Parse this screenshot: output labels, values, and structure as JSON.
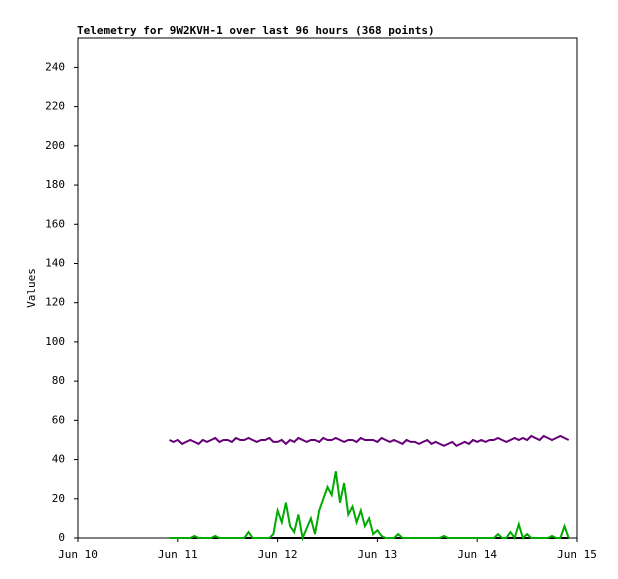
{
  "chart_data": {
    "type": "line",
    "title": "Telemetry for 9W2KVH-1 over last 96 hours (368 points)",
    "y_label": "Values",
    "x": [
      22,
      23,
      24,
      25,
      26,
      27,
      28,
      29,
      30,
      31,
      32,
      33,
      34,
      35,
      36,
      37,
      38,
      39,
      40,
      41,
      42,
      43,
      44,
      45,
      46,
      47,
      48,
      49,
      50,
      51,
      52,
      53,
      54,
      55,
      56,
      57,
      58,
      59,
      60,
      61,
      62,
      63,
      64,
      65,
      66,
      67,
      68,
      69,
      70,
      71,
      72,
      73,
      74,
      75,
      76,
      77,
      78,
      79,
      80,
      81,
      82,
      83,
      84,
      85,
      86,
      87,
      88,
      89,
      90,
      91,
      92,
      93,
      94,
      95,
      96,
      97,
      98,
      99,
      100,
      101,
      102,
      103,
      104,
      105,
      106,
      107,
      108,
      109,
      110,
      111,
      112,
      113,
      114,
      115,
      116,
      117,
      118
    ],
    "series": [
      {
        "color": "#000000",
        "values": [
          0,
          0,
          0,
          0,
          0,
          0,
          0,
          0,
          0,
          0,
          0,
          0,
          0,
          0,
          0,
          0,
          0,
          0,
          0,
          0,
          0,
          0,
          0,
          0,
          0,
          0,
          0,
          0,
          0,
          0,
          0,
          0,
          0,
          0,
          0,
          0,
          0,
          0,
          0,
          0,
          0,
          0,
          0,
          0,
          0,
          0,
          0,
          0,
          0,
          0,
          0,
          0,
          0,
          0,
          0,
          0,
          0,
          0,
          0,
          0,
          0,
          0,
          0,
          0,
          0,
          0,
          0,
          0,
          0,
          0,
          0,
          0,
          0,
          0,
          0,
          0,
          0,
          0,
          0,
          0,
          0,
          0,
          0,
          0,
          0,
          0,
          0,
          0,
          0,
          0,
          0,
          0,
          0,
          0,
          0,
          0,
          0
        ]
      },
      {
        "color": "#00aa00",
        "values": [
          0,
          0,
          0,
          0,
          0,
          0,
          1,
          0,
          0,
          0,
          0,
          1,
          0,
          0,
          0,
          0,
          0,
          0,
          0,
          3,
          0,
          0,
          0,
          0,
          0,
          2,
          14,
          8,
          18,
          6,
          3,
          12,
          0,
          5,
          10,
          2,
          14,
          20,
          26,
          22,
          34,
          18,
          28,
          12,
          16,
          8,
          14,
          6,
          10,
          2,
          4,
          1,
          0,
          0,
          0,
          2,
          0,
          0,
          0,
          0,
          0,
          0,
          0,
          0,
          0,
          0,
          1,
          0,
          0,
          0,
          0,
          0,
          0,
          0,
          0,
          0,
          0,
          0,
          0,
          2,
          0,
          0,
          3,
          0,
          7,
          0,
          2,
          0,
          0,
          0,
          0,
          0,
          1,
          0,
          0,
          6,
          0
        ]
      },
      {
        "color": "#660077",
        "values": [
          50,
          49,
          50,
          48,
          49,
          50,
          49,
          48,
          50,
          49,
          50,
          51,
          49,
          50,
          50,
          49,
          51,
          50,
          50,
          51,
          50,
          49,
          50,
          50,
          51,
          49,
          49,
          50,
          48,
          50,
          49,
          51,
          50,
          49,
          50,
          50,
          49,
          51,
          50,
          50,
          51,
          50,
          49,
          50,
          50,
          49,
          51,
          50,
          50,
          50,
          49,
          51,
          50,
          49,
          50,
          49,
          48,
          50,
          49,
          49,
          48,
          49,
          50,
          48,
          49,
          48,
          47,
          48,
          49,
          47,
          48,
          49,
          48,
          50,
          49,
          50,
          49,
          50,
          50,
          51,
          50,
          49,
          50,
          51,
          50,
          51,
          50,
          52,
          51,
          50,
          52,
          51,
          50,
          51,
          52,
          51,
          50
        ]
      }
    ],
    "xlim": [
      0,
      120
    ],
    "xticks": [
      {
        "value": 0,
        "label": "Jun 10"
      },
      {
        "value": 24,
        "label": "Jun 11"
      },
      {
        "value": 48,
        "label": "Jun 12"
      },
      {
        "value": 72,
        "label": "Jun 13"
      },
      {
        "value": 96,
        "label": "Jun 14"
      },
      {
        "value": 120,
        "label": "Jun 15"
      }
    ],
    "ylim": [
      0,
      255
    ],
    "yticks": [
      0,
      20,
      40,
      60,
      80,
      100,
      120,
      140,
      160,
      180,
      200,
      220,
      240
    ],
    "grid": false
  }
}
